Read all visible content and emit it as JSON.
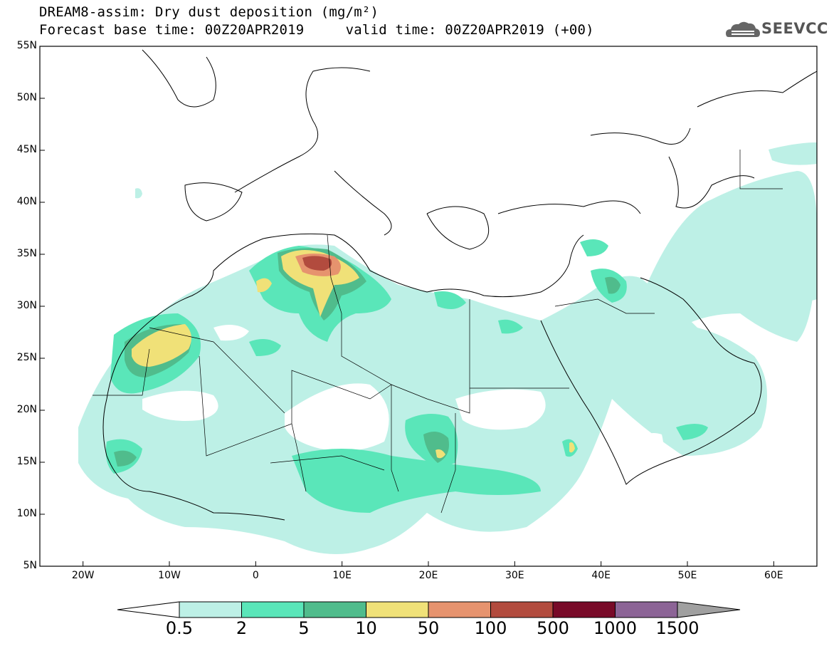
{
  "title": {
    "line1": "DREAM8-assim: Dry dust deposition (mg/m²)",
    "line2": "Forecast base time: 00Z20APR2019     valid time: 00Z20APR2019 (+00)"
  },
  "logo": {
    "text": "SEEVCCC",
    "icon": "cloud-logo-icon"
  },
  "map": {
    "lon_range": [
      -25,
      65
    ],
    "lat_range": [
      5,
      55
    ],
    "lat_ticks": [
      {
        "value": 55,
        "label": "55N"
      },
      {
        "value": 50,
        "label": "50N"
      },
      {
        "value": 45,
        "label": "45N"
      },
      {
        "value": 40,
        "label": "40N"
      },
      {
        "value": 35,
        "label": "35N"
      },
      {
        "value": 30,
        "label": "30N"
      },
      {
        "value": 25,
        "label": "25N"
      },
      {
        "value": 20,
        "label": "20N"
      },
      {
        "value": 15,
        "label": "15N"
      },
      {
        "value": 10,
        "label": "10N"
      },
      {
        "value": 5,
        "label": "5N"
      }
    ],
    "lon_ticks": [
      {
        "value": -20,
        "label": "20W"
      },
      {
        "value": -10,
        "label": "10W"
      },
      {
        "value": 0,
        "label": "0"
      },
      {
        "value": 10,
        "label": "10E"
      },
      {
        "value": 20,
        "label": "20E"
      },
      {
        "value": 30,
        "label": "30E"
      },
      {
        "value": 40,
        "label": "40E"
      },
      {
        "value": 50,
        "label": "50E"
      },
      {
        "value": 60,
        "label": "60E"
      }
    ]
  },
  "colorbar": {
    "labels": [
      "0.5",
      "2",
      "5",
      "10",
      "50",
      "100",
      "500",
      "1000",
      "1500"
    ],
    "colors": [
      "#bdf0e6",
      "#5ae6b9",
      "#50bc8c",
      "#f0e178",
      "#e6936e",
      "#b24b3e",
      "#780a28",
      "#8c6496",
      "#a0a0a0"
    ]
  },
  "colors": {
    "c1": "#bdf0e6",
    "c2": "#5ae6b9",
    "c3": "#50bc8c",
    "c4": "#f0e178",
    "c5": "#e6936e",
    "c6": "#b24b3e",
    "border": "#000000"
  }
}
